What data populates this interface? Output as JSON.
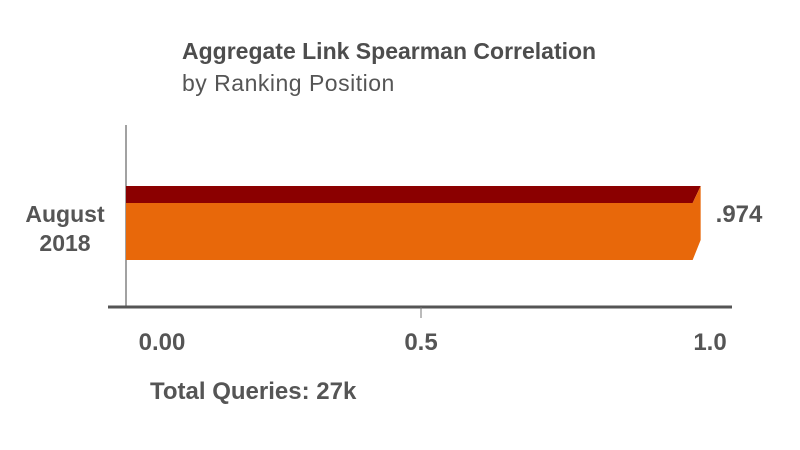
{
  "chart_data": {
    "type": "bar",
    "orientation": "horizontal",
    "title": "Aggregate Link Spearman Correlation",
    "subtitle": "by Ranking Position",
    "categories": [
      "August 2018"
    ],
    "category_lines": [
      "August",
      "2018"
    ],
    "values": [
      0.974
    ],
    "data_labels": [
      ".974"
    ],
    "xlim": [
      0,
      1.0
    ],
    "xticks": [
      0,
      0.5,
      1.0
    ],
    "xtick_labels": [
      "0.00",
      "0.5",
      "1.0"
    ],
    "xlabel": "",
    "ylabel": "",
    "grid": false,
    "colors": {
      "bar": "#e8680a",
      "bar_top": "#8b0000",
      "text": "#555555",
      "axis": "#555555"
    }
  },
  "footer": "Total Queries: 27k"
}
